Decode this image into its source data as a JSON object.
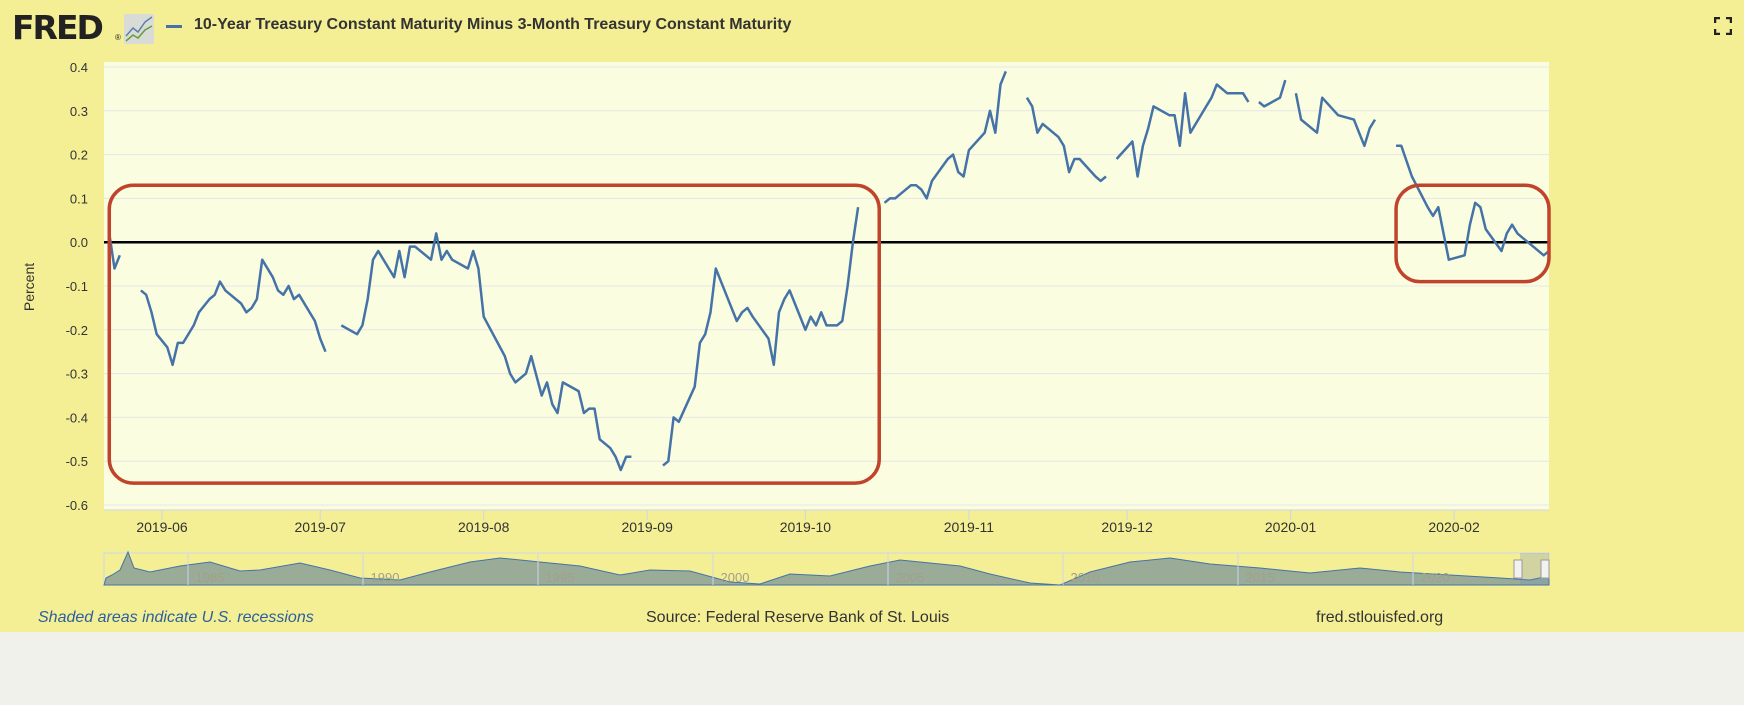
{
  "header": {
    "logo_text": "FRED",
    "logo_reg": "®",
    "series_title": "10-Year Treasury Constant Maturity Minus 3-Month Treasury Constant Maturity",
    "fullscreen_icon": "fullscreen-icon"
  },
  "footer": {
    "recession_note": "Shaded areas indicate U.S. recessions",
    "source": "Source: Federal Reserve Bank of St. Louis",
    "site": "fred.stlouisfed.org"
  },
  "colors": {
    "background": "#f4ef94",
    "plot_background": "#fafde0",
    "series": "#4572a7",
    "annotation_box": "#c0442c",
    "zero_line": "#000000"
  },
  "chart_data": {
    "type": "line",
    "title": "10-Year Treasury Constant Maturity Minus 3-Month Treasury Constant Maturity",
    "xlabel": "",
    "ylabel": "Percent",
    "xlim": [
      "2019-05-21",
      "2020-02-19"
    ],
    "ylim": [
      -0.6,
      0.4
    ],
    "yticks": [
      0.4,
      0.3,
      0.2,
      0.1,
      0.0,
      -0.1,
      -0.2,
      -0.3,
      -0.4,
      -0.5,
      -0.6
    ],
    "ytick_labels": [
      "0.4",
      "0.3",
      "0.2",
      "0.1",
      "0.0",
      "-0.1",
      "-0.2",
      "-0.3",
      "-0.4",
      "-0.5",
      "-0.6"
    ],
    "xticks": [
      "2019-06-01",
      "2019-07-01",
      "2019-08-01",
      "2019-09-01",
      "2019-10-01",
      "2019-11-01",
      "2019-12-01",
      "2020-01-01",
      "2020-02-01"
    ],
    "xtick_labels": [
      "2019-06",
      "2019-07",
      "2019-08",
      "2019-09",
      "2019-10",
      "2019-11",
      "2019-12",
      "2020-01",
      "2020-02"
    ],
    "grid": true,
    "reference_line": 0.0,
    "annotations": [
      {
        "type": "rounded-box",
        "x_range": [
          "2019-05-22",
          "2019-10-15"
        ],
        "y_range": [
          -0.55,
          0.13
        ]
      },
      {
        "type": "rounded-box",
        "x_range": [
          "2020-01-21",
          "2020-02-19"
        ],
        "y_range": [
          -0.09,
          0.13
        ]
      }
    ],
    "series": [
      {
        "name": "10-Year Treasury Constant Maturity Minus 3-Month Treasury Constant Maturity",
        "segments": [
          [
            [
              "2019-05-22",
              0.02
            ],
            [
              "2019-05-23",
              -0.06
            ],
            [
              "2019-05-24",
              -0.03
            ]
          ],
          [
            [
              "2019-05-28",
              -0.11
            ],
            [
              "2019-05-29",
              -0.12
            ],
            [
              "2019-05-30",
              -0.16
            ],
            [
              "2019-05-31",
              -0.21
            ],
            [
              "2019-06-02",
              -0.24
            ],
            [
              "2019-06-03",
              -0.28
            ],
            [
              "2019-06-04",
              -0.23
            ],
            [
              "2019-06-05",
              -0.23
            ],
            [
              "2019-06-07",
              -0.19
            ],
            [
              "2019-06-08",
              -0.16
            ],
            [
              "2019-06-10",
              -0.13
            ],
            [
              "2019-06-11",
              -0.12
            ],
            [
              "2019-06-12",
              -0.09
            ],
            [
              "2019-06-13",
              -0.11
            ],
            [
              "2019-06-14",
              -0.12
            ],
            [
              "2019-06-16",
              -0.14
            ],
            [
              "2019-06-17",
              -0.16
            ],
            [
              "2019-06-18",
              -0.15
            ],
            [
              "2019-06-19",
              -0.13
            ],
            [
              "2019-06-20",
              -0.04
            ],
            [
              "2019-06-22",
              -0.08
            ],
            [
              "2019-06-23",
              -0.11
            ],
            [
              "2019-06-24",
              -0.12
            ],
            [
              "2019-06-25",
              -0.1
            ],
            [
              "2019-06-26",
              -0.13
            ],
            [
              "2019-06-27",
              -0.12
            ],
            [
              "2019-06-30",
              -0.18
            ],
            [
              "2019-07-01",
              -0.22
            ],
            [
              "2019-07-02",
              -0.25
            ]
          ],
          [
            [
              "2019-07-05",
              -0.19
            ],
            [
              "2019-07-08",
              -0.21
            ],
            [
              "2019-07-09",
              -0.19
            ],
            [
              "2019-07-10",
              -0.13
            ],
            [
              "2019-07-11",
              -0.04
            ],
            [
              "2019-07-12",
              -0.02
            ],
            [
              "2019-07-14",
              -0.06
            ],
            [
              "2019-07-15",
              -0.08
            ],
            [
              "2019-07-16",
              -0.02
            ],
            [
              "2019-07-17",
              -0.08
            ],
            [
              "2019-07-18",
              -0.01
            ],
            [
              "2019-07-19",
              -0.01
            ],
            [
              "2019-07-22",
              -0.04
            ],
            [
              "2019-07-23",
              0.02
            ],
            [
              "2019-07-24",
              -0.04
            ],
            [
              "2019-07-25",
              -0.02
            ],
            [
              "2019-07-26",
              -0.04
            ],
            [
              "2019-07-29",
              -0.06
            ],
            [
              "2019-07-30",
              -0.02
            ],
            [
              "2019-07-31",
              -0.06
            ],
            [
              "2019-08-01",
              -0.17
            ],
            [
              "2019-08-05",
              -0.26
            ],
            [
              "2019-08-06",
              -0.3
            ],
            [
              "2019-08-07",
              -0.32
            ],
            [
              "2019-08-08",
              -0.31
            ],
            [
              "2019-08-09",
              -0.3
            ],
            [
              "2019-08-10",
              -0.26
            ],
            [
              "2019-08-12",
              -0.35
            ],
            [
              "2019-08-13",
              -0.32
            ],
            [
              "2019-08-14",
              -0.37
            ],
            [
              "2019-08-15",
              -0.39
            ],
            [
              "2019-08-16",
              -0.32
            ],
            [
              "2019-08-19",
              -0.34
            ],
            [
              "2019-08-20",
              -0.39
            ],
            [
              "2019-08-21",
              -0.38
            ],
            [
              "2019-08-22",
              -0.38
            ],
            [
              "2019-08-23",
              -0.45
            ],
            [
              "2019-08-25",
              -0.47
            ],
            [
              "2019-08-26",
              -0.49
            ],
            [
              "2019-08-27",
              -0.52
            ],
            [
              "2019-08-28",
              -0.49
            ],
            [
              "2019-08-29",
              -0.49
            ]
          ],
          [
            [
              "2019-09-04",
              -0.51
            ],
            [
              "2019-09-05",
              -0.5
            ],
            [
              "2019-09-06",
              -0.4
            ],
            [
              "2019-09-07",
              -0.41
            ],
            [
              "2019-09-10",
              -0.33
            ],
            [
              "2019-09-11",
              -0.23
            ],
            [
              "2019-09-12",
              -0.21
            ],
            [
              "2019-09-13",
              -0.16
            ],
            [
              "2019-09-14",
              -0.06
            ],
            [
              "2019-09-16",
              -0.12
            ],
            [
              "2019-09-18",
              -0.18
            ],
            [
              "2019-09-19",
              -0.16
            ],
            [
              "2019-09-20",
              -0.15
            ],
            [
              "2019-09-21",
              -0.17
            ],
            [
              "2019-09-24",
              -0.22
            ],
            [
              "2019-09-25",
              -0.28
            ],
            [
              "2019-09-26",
              -0.16
            ],
            [
              "2019-09-27",
              -0.13
            ],
            [
              "2019-09-28",
              -0.11
            ],
            [
              "2019-10-01",
              -0.2
            ],
            [
              "2019-10-02",
              -0.17
            ],
            [
              "2019-10-03",
              -0.19
            ],
            [
              "2019-10-04",
              -0.16
            ],
            [
              "2019-10-05",
              -0.19
            ],
            [
              "2019-10-07",
              -0.19
            ],
            [
              "2019-10-08",
              -0.18
            ],
            [
              "2019-10-09",
              -0.1
            ],
            [
              "2019-10-10",
              0.0
            ],
            [
              "2019-10-11",
              0.08
            ]
          ],
          [
            [
              "2019-10-16",
              0.09
            ],
            [
              "2019-10-17",
              0.1
            ],
            [
              "2019-10-18",
              0.1
            ],
            [
              "2019-10-21",
              0.13
            ],
            [
              "2019-10-22",
              0.13
            ],
            [
              "2019-10-23",
              0.12
            ],
            [
              "2019-10-24",
              0.1
            ],
            [
              "2019-10-25",
              0.14
            ],
            [
              "2019-10-28",
              0.19
            ],
            [
              "2019-10-29",
              0.2
            ],
            [
              "2019-10-30",
              0.16
            ],
            [
              "2019-10-31",
              0.15
            ],
            [
              "2019-11-01",
              0.21
            ],
            [
              "2019-11-04",
              0.25
            ],
            [
              "2019-11-05",
              0.3
            ],
            [
              "2019-11-06",
              0.25
            ],
            [
              "2019-11-07",
              0.36
            ],
            [
              "2019-11-08",
              0.39
            ]
          ],
          [
            [
              "2019-11-12",
              0.33
            ],
            [
              "2019-11-13",
              0.31
            ],
            [
              "2019-11-14",
              0.25
            ],
            [
              "2019-11-15",
              0.27
            ],
            [
              "2019-11-18",
              0.24
            ],
            [
              "2019-11-19",
              0.22
            ],
            [
              "2019-11-20",
              0.16
            ],
            [
              "2019-11-21",
              0.19
            ],
            [
              "2019-11-22",
              0.19
            ],
            [
              "2019-11-25",
              0.15
            ],
            [
              "2019-11-26",
              0.14
            ],
            [
              "2019-11-27",
              0.15
            ]
          ],
          [
            [
              "2019-11-29",
              0.19
            ],
            [
              "2019-12-02",
              0.23
            ],
            [
              "2019-12-03",
              0.15
            ],
            [
              "2019-12-04",
              0.22
            ],
            [
              "2019-12-05",
              0.26
            ],
            [
              "2019-12-06",
              0.31
            ],
            [
              "2019-12-09",
              0.29
            ],
            [
              "2019-12-10",
              0.29
            ],
            [
              "2019-12-11",
              0.22
            ],
            [
              "2019-12-12",
              0.34
            ],
            [
              "2019-12-13",
              0.25
            ],
            [
              "2019-12-16",
              0.31
            ],
            [
              "2019-12-17",
              0.33
            ],
            [
              "2019-12-18",
              0.36
            ],
            [
              "2019-12-20",
              0.34
            ],
            [
              "2019-12-23",
              0.34
            ],
            [
              "2019-12-24",
              0.32
            ]
          ],
          [
            [
              "2019-12-26",
              0.32
            ],
            [
              "2019-12-27",
              0.31
            ],
            [
              "2019-12-30",
              0.33
            ],
            [
              "2019-12-31",
              0.37
            ]
          ],
          [
            [
              "2020-01-02",
              0.34
            ],
            [
              "2020-01-03",
              0.28
            ],
            [
              "2020-01-06",
              0.25
            ],
            [
              "2020-01-07",
              0.33
            ],
            [
              "2020-01-10",
              0.29
            ],
            [
              "2020-01-13",
              0.28
            ],
            [
              "2020-01-14",
              0.25
            ],
            [
              "2020-01-15",
              0.22
            ],
            [
              "2020-01-16",
              0.26
            ],
            [
              "2020-01-17",
              0.28
            ]
          ],
          [
            [
              "2020-01-21",
              0.22
            ],
            [
              "2020-01-22",
              0.22
            ],
            [
              "2020-01-24",
              0.15
            ],
            [
              "2020-01-27",
              0.08
            ],
            [
              "2020-01-28",
              0.06
            ],
            [
              "2020-01-29",
              0.08
            ],
            [
              "2020-01-31",
              -0.04
            ],
            [
              "2020-02-03",
              -0.03
            ],
            [
              "2020-02-04",
              0.04
            ],
            [
              "2020-02-05",
              0.09
            ],
            [
              "2020-02-06",
              0.08
            ],
            [
              "2020-02-07",
              0.03
            ],
            [
              "2020-02-10",
              -0.02
            ],
            [
              "2020-02-11",
              0.02
            ],
            [
              "2020-02-12",
              0.04
            ],
            [
              "2020-02-13",
              0.02
            ],
            [
              "2020-02-14",
              0.01
            ],
            [
              "2020-02-16",
              -0.01
            ],
            [
              "2020-02-18",
              -0.03
            ],
            [
              "2020-02-19",
              -0.02
            ]
          ]
        ]
      }
    ],
    "navigator": {
      "labels": [
        "1985",
        "1990",
        "1995",
        "2000",
        "2005",
        "2010",
        "2015",
        "2020"
      ]
    }
  }
}
